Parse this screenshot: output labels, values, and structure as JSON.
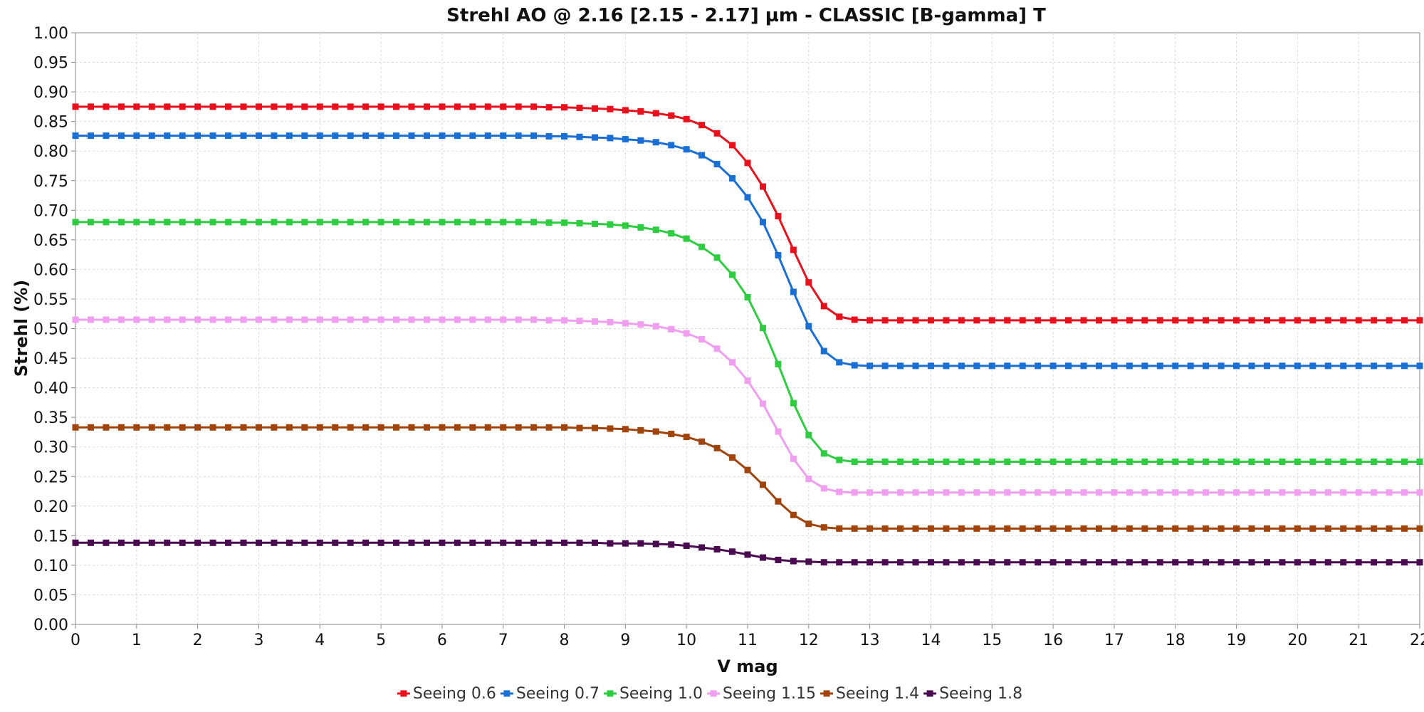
{
  "chart_data": {
    "type": "line",
    "title": "Strehl AO @ 2.16 [2.15 - 2.17] µm - CLASSIC [B-gamma] T",
    "xlabel": "V mag",
    "ylabel": "Strehl (%)",
    "xlim": [
      0,
      22
    ],
    "ylim": [
      0,
      1.0
    ],
    "x_ticks": [
      "0",
      "1",
      "2",
      "3",
      "4",
      "5",
      "6",
      "7",
      "8",
      "9",
      "10",
      "11",
      "12",
      "13",
      "14",
      "15",
      "16",
      "17",
      "18",
      "19",
      "20",
      "21",
      "22"
    ],
    "y_ticks": [
      "0.00",
      "0.05",
      "0.10",
      "0.15",
      "0.20",
      "0.25",
      "0.30",
      "0.35",
      "0.40",
      "0.45",
      "0.50",
      "0.55",
      "0.60",
      "0.65",
      "0.70",
      "0.75",
      "0.80",
      "0.85",
      "0.90",
      "0.95",
      "1.00"
    ],
    "grid": true,
    "legend_position": "bottom",
    "x": [
      0,
      0.25,
      0.5,
      0.75,
      1,
      1.25,
      1.5,
      1.75,
      2,
      2.25,
      2.5,
      2.75,
      3,
      3.25,
      3.5,
      3.75,
      4,
      4.25,
      4.5,
      4.75,
      5,
      5.25,
      5.5,
      5.75,
      6,
      6.25,
      6.5,
      6.75,
      7,
      7.25,
      7.5,
      7.75,
      8,
      8.25,
      8.5,
      8.75,
      9,
      9.25,
      9.5,
      9.75,
      10,
      10.25,
      10.5,
      10.75,
      11,
      11.25,
      11.5,
      11.75,
      12,
      12.25,
      12.5,
      12.75,
      13,
      13.25,
      13.5,
      13.75,
      14,
      14.25,
      14.5,
      14.75,
      15,
      15.25,
      15.5,
      15.75,
      16,
      16.25,
      16.5,
      16.75,
      17,
      17.25,
      17.5,
      17.75,
      18,
      18.25,
      18.5,
      18.75,
      19,
      19.25,
      19.5,
      19.75,
      20,
      20.25,
      20.5,
      20.75,
      21,
      21.25,
      21.5,
      21.75,
      22
    ],
    "series": [
      {
        "name": "Seeing 0.6",
        "color": "#e8101c",
        "values": [
          0.875,
          0.875,
          0.875,
          0.875,
          0.875,
          0.875,
          0.875,
          0.875,
          0.875,
          0.875,
          0.875,
          0.875,
          0.875,
          0.875,
          0.875,
          0.875,
          0.875,
          0.875,
          0.875,
          0.875,
          0.875,
          0.875,
          0.875,
          0.875,
          0.875,
          0.875,
          0.875,
          0.875,
          0.875,
          0.875,
          0.875,
          0.874,
          0.874,
          0.873,
          0.872,
          0.871,
          0.869,
          0.867,
          0.864,
          0.86,
          0.854,
          0.844,
          0.83,
          0.81,
          0.78,
          0.74,
          0.69,
          0.633,
          0.578,
          0.538,
          0.52,
          0.515,
          0.514,
          0.514,
          0.514,
          0.514,
          0.514,
          0.514,
          0.514,
          0.514,
          0.514,
          0.514,
          0.514,
          0.514,
          0.514,
          0.514,
          0.514,
          0.514,
          0.514,
          0.514,
          0.514,
          0.514,
          0.514,
          0.514,
          0.514,
          0.514,
          0.514,
          0.514,
          0.514,
          0.514,
          0.514,
          0.514,
          0.514,
          0.514,
          0.514,
          0.514,
          0.514,
          0.514,
          0.514
        ]
      },
      {
        "name": "Seeing 0.7",
        "color": "#1a6fd4",
        "values": [
          0.826,
          0.826,
          0.826,
          0.826,
          0.826,
          0.826,
          0.826,
          0.826,
          0.826,
          0.826,
          0.826,
          0.826,
          0.826,
          0.826,
          0.826,
          0.826,
          0.826,
          0.826,
          0.826,
          0.826,
          0.826,
          0.826,
          0.826,
          0.826,
          0.826,
          0.826,
          0.826,
          0.826,
          0.826,
          0.826,
          0.826,
          0.825,
          0.825,
          0.824,
          0.823,
          0.822,
          0.82,
          0.818,
          0.815,
          0.81,
          0.803,
          0.793,
          0.778,
          0.754,
          0.722,
          0.68,
          0.624,
          0.562,
          0.504,
          0.462,
          0.443,
          0.438,
          0.437,
          0.437,
          0.437,
          0.437,
          0.437,
          0.437,
          0.437,
          0.437,
          0.437,
          0.437,
          0.437,
          0.437,
          0.437,
          0.437,
          0.437,
          0.437,
          0.437,
          0.437,
          0.437,
          0.437,
          0.437,
          0.437,
          0.437,
          0.437,
          0.437,
          0.437,
          0.437,
          0.437,
          0.437,
          0.437,
          0.437,
          0.437,
          0.437,
          0.437,
          0.437,
          0.437,
          0.437
        ]
      },
      {
        "name": "Seeing 1.0",
        "color": "#2ecc40",
        "values": [
          0.68,
          0.68,
          0.68,
          0.68,
          0.68,
          0.68,
          0.68,
          0.68,
          0.68,
          0.68,
          0.68,
          0.68,
          0.68,
          0.68,
          0.68,
          0.68,
          0.68,
          0.68,
          0.68,
          0.68,
          0.68,
          0.68,
          0.68,
          0.68,
          0.68,
          0.68,
          0.68,
          0.68,
          0.68,
          0.68,
          0.68,
          0.679,
          0.679,
          0.678,
          0.677,
          0.676,
          0.674,
          0.671,
          0.667,
          0.661,
          0.652,
          0.638,
          0.62,
          0.591,
          0.553,
          0.501,
          0.44,
          0.374,
          0.32,
          0.289,
          0.278,
          0.275,
          0.275,
          0.275,
          0.275,
          0.275,
          0.275,
          0.275,
          0.275,
          0.275,
          0.275,
          0.275,
          0.275,
          0.275,
          0.275,
          0.275,
          0.275,
          0.275,
          0.275,
          0.275,
          0.275,
          0.275,
          0.275,
          0.275,
          0.275,
          0.275,
          0.275,
          0.275,
          0.275,
          0.275,
          0.275,
          0.275,
          0.275,
          0.275,
          0.275,
          0.275,
          0.275,
          0.275,
          0.275
        ]
      },
      {
        "name": "Seeing 1.15",
        "color": "#f09ef0",
        "values": [
          0.515,
          0.515,
          0.515,
          0.515,
          0.515,
          0.515,
          0.515,
          0.515,
          0.515,
          0.515,
          0.515,
          0.515,
          0.515,
          0.515,
          0.515,
          0.515,
          0.515,
          0.515,
          0.515,
          0.515,
          0.515,
          0.515,
          0.515,
          0.515,
          0.515,
          0.515,
          0.515,
          0.515,
          0.515,
          0.515,
          0.515,
          0.514,
          0.514,
          0.513,
          0.512,
          0.511,
          0.509,
          0.507,
          0.504,
          0.499,
          0.492,
          0.482,
          0.466,
          0.443,
          0.412,
          0.373,
          0.326,
          0.28,
          0.246,
          0.23,
          0.224,
          0.223,
          0.223,
          0.223,
          0.223,
          0.223,
          0.223,
          0.223,
          0.223,
          0.223,
          0.223,
          0.223,
          0.223,
          0.223,
          0.223,
          0.223,
          0.223,
          0.223,
          0.223,
          0.223,
          0.223,
          0.223,
          0.223,
          0.223,
          0.223,
          0.223,
          0.223,
          0.223,
          0.223,
          0.223,
          0.223,
          0.223,
          0.223,
          0.223,
          0.223,
          0.223,
          0.223,
          0.223,
          0.223
        ]
      },
      {
        "name": "Seeing 1.4",
        "color": "#a0440c",
        "values": [
          0.333,
          0.333,
          0.333,
          0.333,
          0.333,
          0.333,
          0.333,
          0.333,
          0.333,
          0.333,
          0.333,
          0.333,
          0.333,
          0.333,
          0.333,
          0.333,
          0.333,
          0.333,
          0.333,
          0.333,
          0.333,
          0.333,
          0.333,
          0.333,
          0.333,
          0.333,
          0.333,
          0.333,
          0.333,
          0.333,
          0.333,
          0.333,
          0.333,
          0.332,
          0.332,
          0.331,
          0.33,
          0.328,
          0.326,
          0.322,
          0.317,
          0.309,
          0.298,
          0.282,
          0.261,
          0.236,
          0.208,
          0.185,
          0.17,
          0.164,
          0.162,
          0.162,
          0.162,
          0.162,
          0.162,
          0.162,
          0.162,
          0.162,
          0.162,
          0.162,
          0.162,
          0.162,
          0.162,
          0.162,
          0.162,
          0.162,
          0.162,
          0.162,
          0.162,
          0.162,
          0.162,
          0.162,
          0.162,
          0.162,
          0.162,
          0.162,
          0.162,
          0.162,
          0.162,
          0.162,
          0.162,
          0.162,
          0.162,
          0.162,
          0.162,
          0.162,
          0.162,
          0.162,
          0.162
        ]
      },
      {
        "name": "Seeing 1.8",
        "color": "#4a0a50",
        "values": [
          0.138,
          0.138,
          0.138,
          0.138,
          0.138,
          0.138,
          0.138,
          0.138,
          0.138,
          0.138,
          0.138,
          0.138,
          0.138,
          0.138,
          0.138,
          0.138,
          0.138,
          0.138,
          0.138,
          0.138,
          0.138,
          0.138,
          0.138,
          0.138,
          0.138,
          0.138,
          0.138,
          0.138,
          0.138,
          0.138,
          0.138,
          0.138,
          0.138,
          0.138,
          0.138,
          0.137,
          0.137,
          0.137,
          0.136,
          0.135,
          0.133,
          0.13,
          0.127,
          0.123,
          0.118,
          0.113,
          0.109,
          0.107,
          0.106,
          0.105,
          0.105,
          0.105,
          0.105,
          0.105,
          0.105,
          0.105,
          0.105,
          0.105,
          0.105,
          0.105,
          0.105,
          0.105,
          0.105,
          0.105,
          0.105,
          0.105,
          0.105,
          0.105,
          0.105,
          0.105,
          0.105,
          0.105,
          0.105,
          0.105,
          0.105,
          0.105,
          0.105,
          0.105,
          0.105,
          0.105,
          0.105,
          0.105,
          0.105,
          0.105,
          0.105,
          0.105,
          0.105,
          0.105,
          0.105
        ]
      }
    ]
  }
}
